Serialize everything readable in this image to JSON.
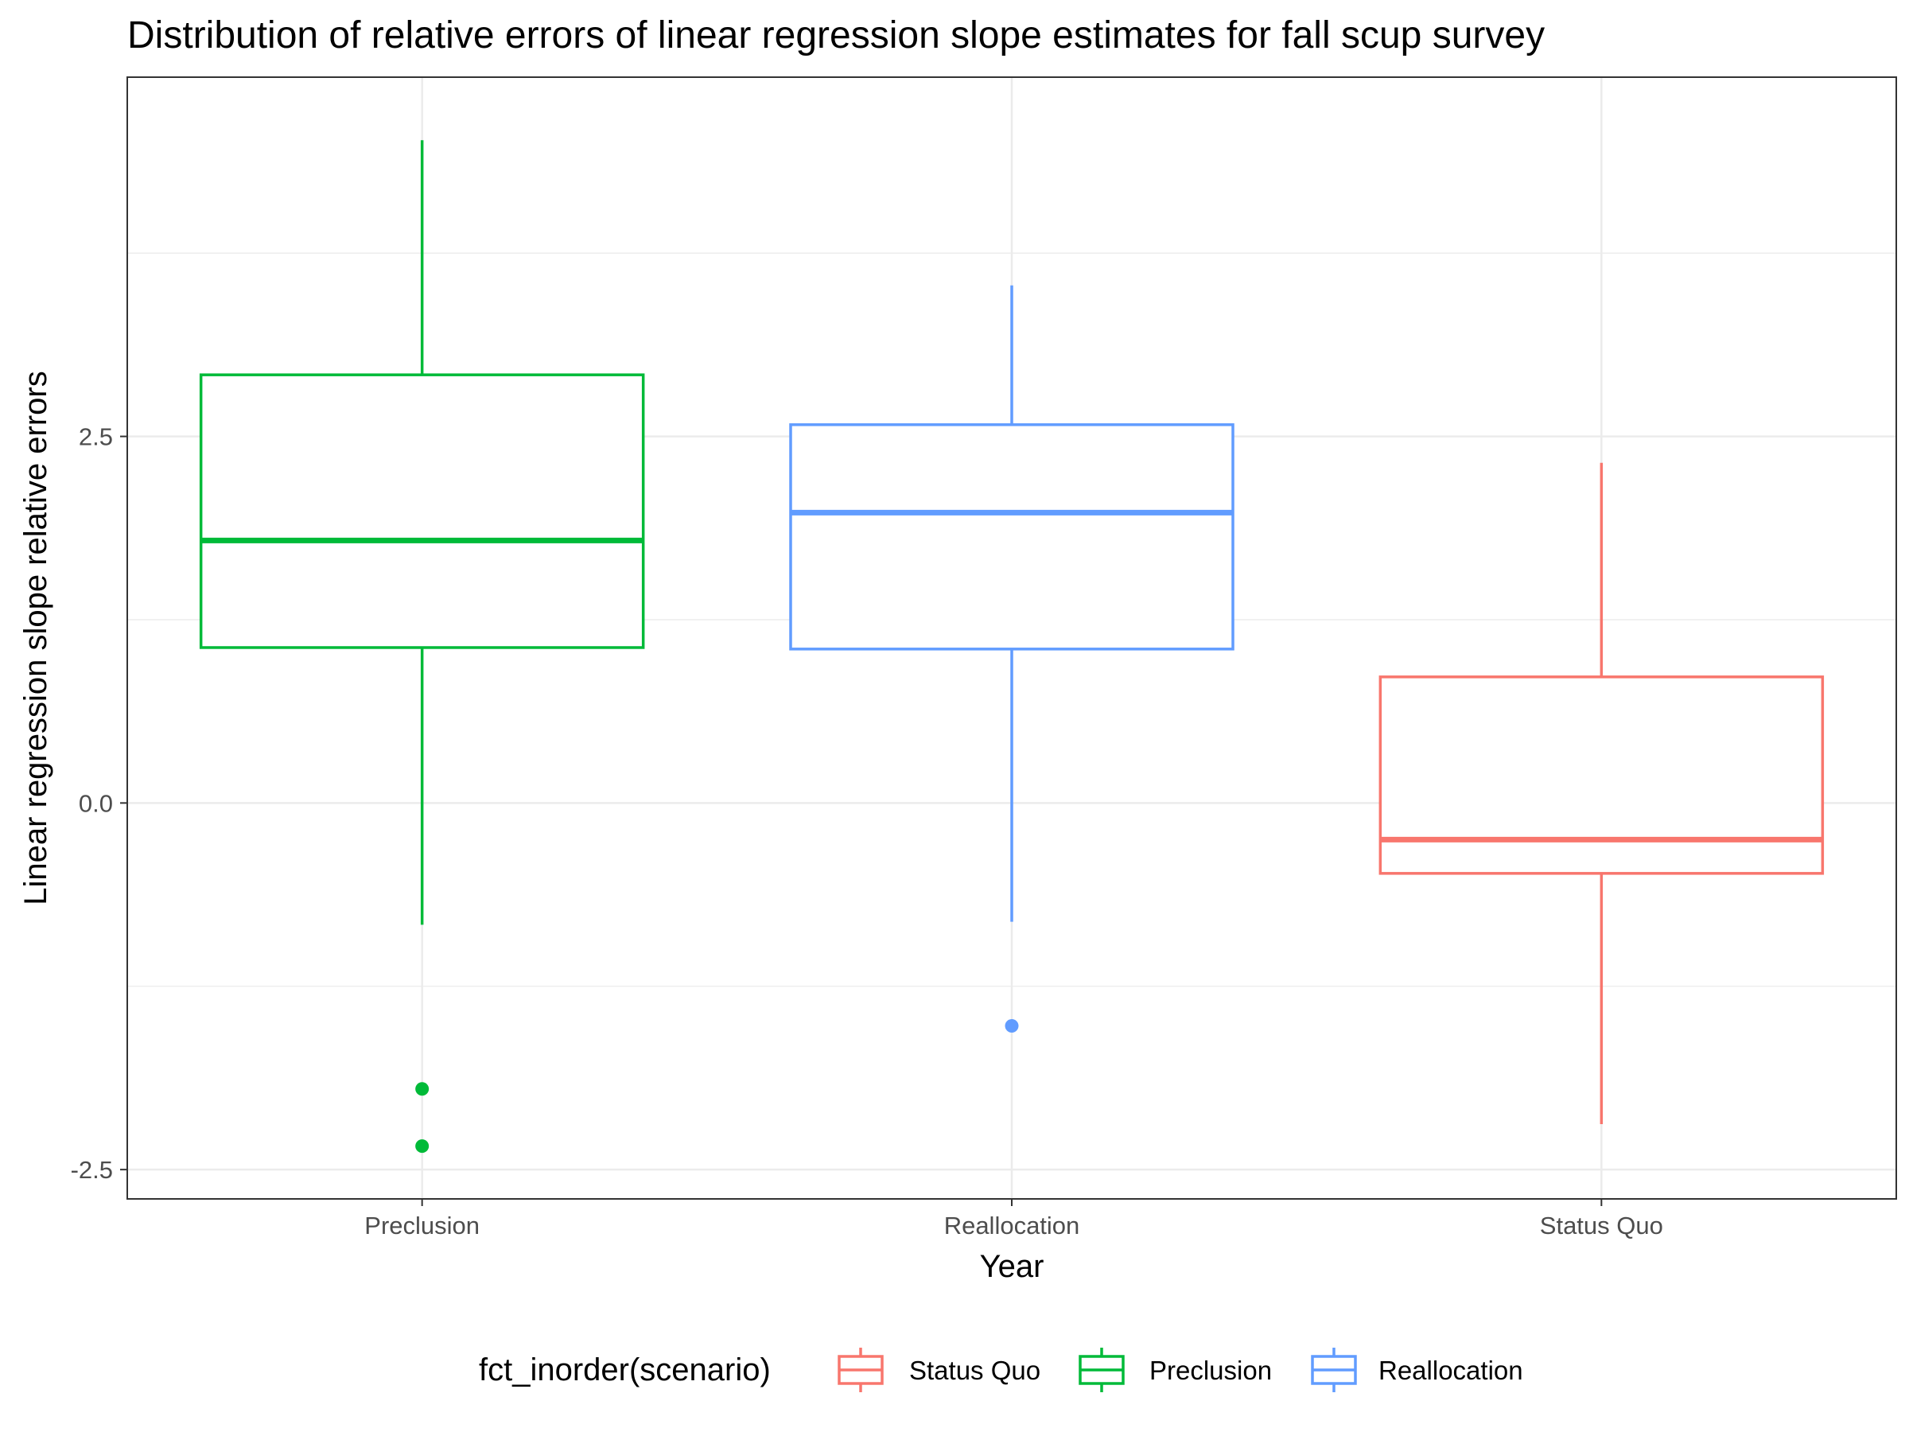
{
  "chart_data": {
    "type": "boxplot",
    "title": "Distribution of relative errors of linear regression slope estimates for fall scup survey",
    "xlabel": "Year",
    "ylabel": "Linear regression slope relative errors",
    "ylim": [
      -2.7,
      4.95
    ],
    "yticks": [
      -2.5,
      0.0,
      2.5
    ],
    "ytick_labels": [
      "-2.5",
      "0.0",
      "2.5"
    ],
    "categories": [
      "Preclusion",
      "Reallocation",
      "Status Quo"
    ],
    "grid": true,
    "legend": {
      "title": "fct_inorder(scenario)",
      "position": "bottom",
      "entries": [
        {
          "label": "Status Quo",
          "color": "#F8766D"
        },
        {
          "label": "Preclusion",
          "color": "#00BA38"
        },
        {
          "label": "Reallocation",
          "color": "#619CFF"
        }
      ]
    },
    "boxes": [
      {
        "category": "Preclusion",
        "color": "#00BA38",
        "whisker_low": -0.83,
        "q1": 1.06,
        "median": 1.79,
        "q3": 2.92,
        "whisker_high": 4.52,
        "outliers": [
          -1.95,
          -2.34
        ]
      },
      {
        "category": "Reallocation",
        "color": "#619CFF",
        "whisker_low": -0.81,
        "q1": 1.05,
        "median": 1.98,
        "q3": 2.58,
        "whisker_high": 3.53,
        "outliers": [
          -1.52
        ]
      },
      {
        "category": "Status Quo",
        "color": "#F8766D",
        "whisker_low": -2.19,
        "q1": -0.48,
        "median": -0.25,
        "q3": 0.86,
        "whisker_high": 2.32,
        "outliers": []
      }
    ]
  }
}
